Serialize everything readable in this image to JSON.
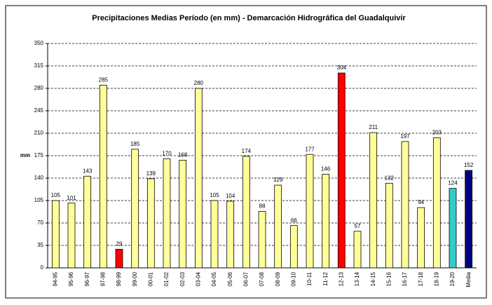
{
  "chart_data": {
    "type": "bar",
    "title": "Precipitaciones Medias Período (en mm) - Demarcación Hidrográfica del Guadalquivir",
    "y_label": "mm",
    "categories": [
      "94-95",
      "95-96",
      "96-97",
      "97-98",
      "98-99",
      "99-00",
      "00-01",
      "01-02",
      "02-03",
      "03-04",
      "04-05",
      "05-06",
      "06-07",
      "07-08",
      "08-09",
      "09-10",
      "10-11",
      "11-12",
      "12-13",
      "13-14",
      "14-15",
      "15-16",
      "16-17",
      "17-18",
      "18-19",
      "19-20",
      "Media"
    ],
    "values": [
      105,
      101,
      143,
      285,
      29,
      185,
      139,
      170,
      168,
      280,
      105,
      104,
      174,
      88,
      129,
      66,
      177,
      146,
      304,
      57,
      211,
      132,
      197,
      94,
      203,
      124,
      152
    ],
    "colors": [
      "#ffff99",
      "#ffff99",
      "#ffff99",
      "#ffff99",
      "#ff0000",
      "#ffff99",
      "#ffff99",
      "#ffff99",
      "#ffff99",
      "#ffff99",
      "#ffff99",
      "#ffff99",
      "#ffff99",
      "#ffff99",
      "#ffff99",
      "#ffff99",
      "#ffff99",
      "#ffff99",
      "#ff0000",
      "#ffff99",
      "#ffff99",
      "#ffff99",
      "#ffff99",
      "#ffff99",
      "#ffff99",
      "#33cccc",
      "#000080"
    ],
    "ylim": [
      0,
      350
    ],
    "yticks": [
      0,
      35,
      70,
      105,
      140,
      175,
      210,
      245,
      280,
      315,
      350
    ],
    "grid": true
  }
}
